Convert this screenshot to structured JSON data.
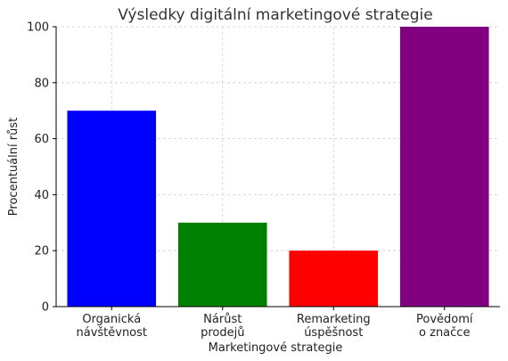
{
  "chart_data": {
    "type": "bar",
    "title": "Výsledky digitální marketingové strategie",
    "xlabel": "Marketingové strategie",
    "ylabel": "Procentuální růst",
    "ylim": [
      0,
      100
    ],
    "yticks": [
      0,
      20,
      40,
      60,
      80,
      100
    ],
    "grid": true,
    "categories": [
      [
        "Organická",
        "návštěvnost"
      ],
      [
        "Nárůst",
        "prodejů"
      ],
      [
        "Remarketing",
        "úspěšnost"
      ],
      [
        "Povědomí",
        "o značce"
      ]
    ],
    "values": [
      70,
      30,
      20,
      100
    ],
    "colors": [
      "#0000ff",
      "#008000",
      "#ff0000",
      "#800080"
    ]
  }
}
